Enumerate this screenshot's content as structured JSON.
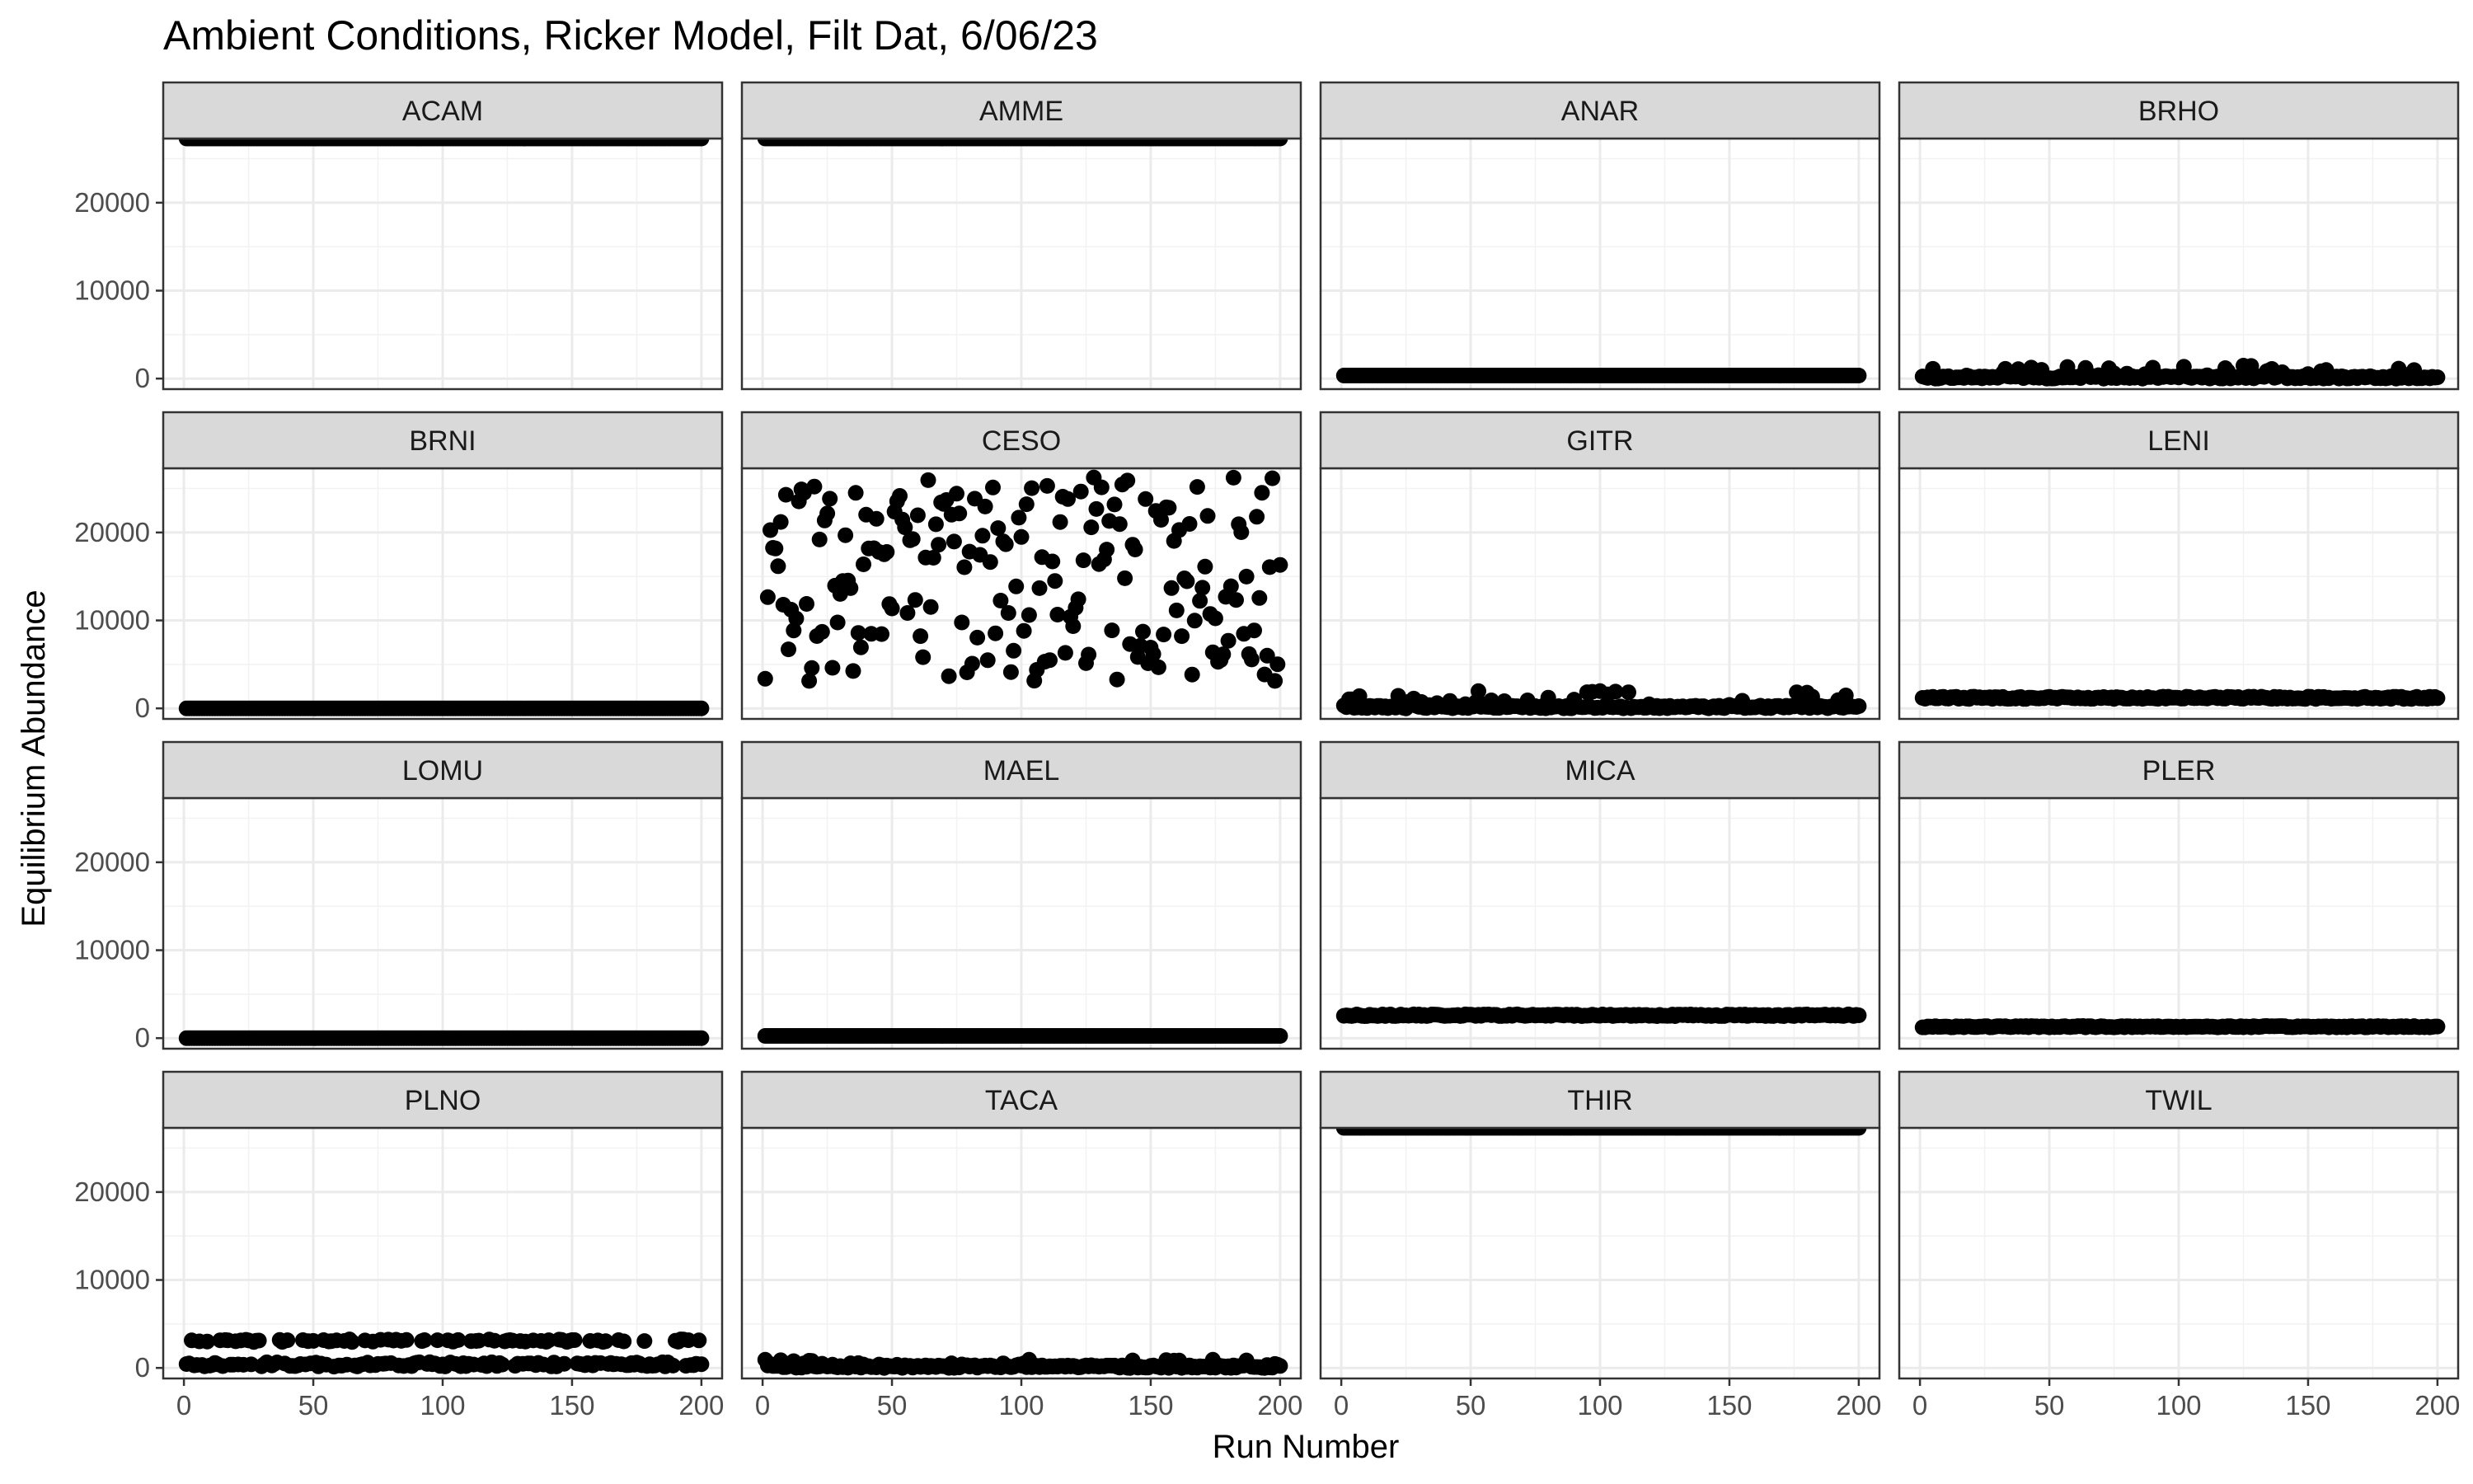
{
  "chart_data": {
    "type": "scatter",
    "facet_layout": "4x4 grid, shared axes",
    "title": "Ambient Conditions, Ricker Model, Filt Dat, 6/06/23",
    "xlabel": "Run Number",
    "ylabel": "Equilibrium Abundance",
    "xlim": [
      -8,
      208
    ],
    "ylim": [
      -1200,
      27300
    ],
    "x_ticks": [
      0,
      50,
      100,
      150,
      200
    ],
    "y_ticks": [
      0,
      10000,
      20000
    ],
    "x_tick_labels": [
      "0",
      "50",
      "100",
      "150",
      "200"
    ],
    "y_tick_labels": [
      "0",
      "10000",
      "20000"
    ],
    "grid": true,
    "point_color": "#000000",
    "theme": "black and white, grey facet strips",
    "run_numbers": "1 to 200",
    "panels": [
      {
        "label": "ACAM",
        "pattern": "constant",
        "level": 27300
      },
      {
        "label": "AMME",
        "pattern": "constant",
        "level": 27300
      },
      {
        "label": "ANAR",
        "pattern": "constant",
        "level": 350
      },
      {
        "label": "BRHO",
        "pattern": "low_noise",
        "base": 150,
        "max": 1500
      },
      {
        "label": "BRNI",
        "pattern": "constant",
        "level": 0
      },
      {
        "label": "CESO",
        "pattern": "bimodal",
        "low_range": [
          3000,
          15000
        ],
        "high_range": [
          16000,
          26500
        ]
      },
      {
        "label": "GITR",
        "pattern": "low_noise",
        "base": 150,
        "max": 2000
      },
      {
        "label": "LENI",
        "pattern": "band",
        "level": 1200,
        "spread": 250
      },
      {
        "label": "LOMU",
        "pattern": "constant",
        "level": 0
      },
      {
        "label": "MAEL",
        "pattern": "constant",
        "level": 250
      },
      {
        "label": "MICA",
        "pattern": "band",
        "level": 2600,
        "spread": 200
      },
      {
        "label": "PLER",
        "pattern": "band",
        "level": 1300,
        "spread": 150
      },
      {
        "label": "PLNO",
        "pattern": "two_levels",
        "low": 400,
        "high": 3100
      },
      {
        "label": "TACA",
        "pattern": "low_noise",
        "base": 150,
        "max": 1000
      },
      {
        "label": "THIR",
        "pattern": "constant",
        "level": 27300
      },
      {
        "label": "TWIL",
        "pattern": "empty"
      }
    ]
  }
}
